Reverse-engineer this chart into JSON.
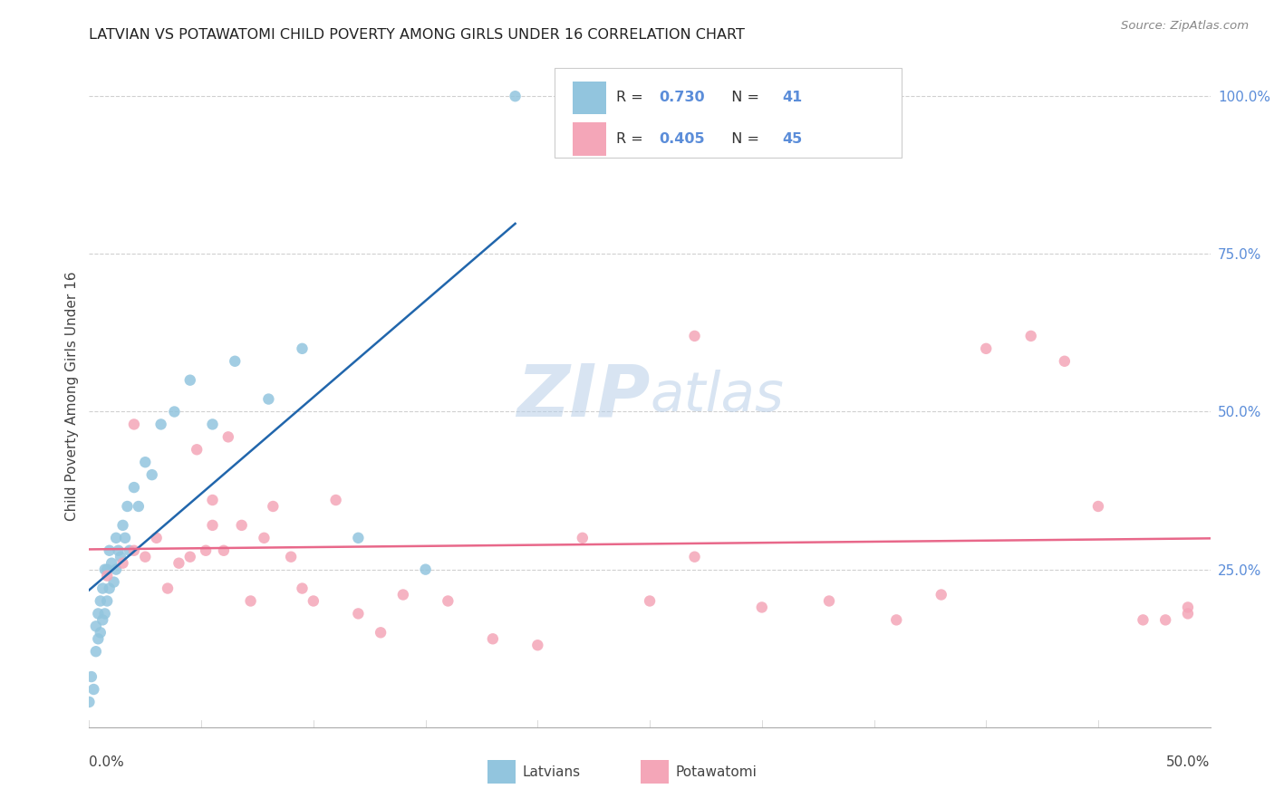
{
  "title": "LATVIAN VS POTAWATOMI CHILD POVERTY AMONG GIRLS UNDER 16 CORRELATION CHART",
  "source": "Source: ZipAtlas.com",
  "ylabel": "Child Poverty Among Girls Under 16",
  "ytick_labels": [
    "100.0%",
    "75.0%",
    "50.0%",
    "25.0%"
  ],
  "ytick_positions": [
    1.0,
    0.75,
    0.5,
    0.25
  ],
  "xlim": [
    0.0,
    0.5
  ],
  "ylim": [
    0.0,
    1.05
  ],
  "latvian_color": "#92c5de",
  "potawatomi_color": "#f4a6b8",
  "latvian_line_color": "#2166ac",
  "potawatomi_line_color": "#e8688a",
  "legend_R_latvian": "0.730",
  "legend_N_latvian": "41",
  "legend_R_potawatomi": "0.405",
  "legend_N_potawatomi": "45",
  "watermark_zip": "ZIP",
  "watermark_atlas": "atlas",
  "lat_x": [
    0.0,
    0.001,
    0.002,
    0.003,
    0.003,
    0.004,
    0.004,
    0.005,
    0.005,
    0.006,
    0.006,
    0.007,
    0.007,
    0.008,
    0.008,
    0.009,
    0.009,
    0.01,
    0.011,
    0.012,
    0.012,
    0.013,
    0.014,
    0.015,
    0.016,
    0.017,
    0.018,
    0.02,
    0.022,
    0.025,
    0.028,
    0.032,
    0.038,
    0.045,
    0.055,
    0.065,
    0.08,
    0.095,
    0.12,
    0.15,
    0.19
  ],
  "lat_y": [
    0.04,
    0.08,
    0.06,
    0.12,
    0.16,
    0.14,
    0.18,
    0.15,
    0.2,
    0.17,
    0.22,
    0.18,
    0.25,
    0.2,
    0.25,
    0.22,
    0.28,
    0.26,
    0.23,
    0.3,
    0.25,
    0.28,
    0.27,
    0.32,
    0.3,
    0.35,
    0.28,
    0.38,
    0.35,
    0.42,
    0.4,
    0.48,
    0.5,
    0.55,
    0.48,
    0.58,
    0.52,
    0.6,
    0.3,
    0.25,
    1.0
  ],
  "pot_x": [
    0.008,
    0.015,
    0.02,
    0.025,
    0.03,
    0.035,
    0.04,
    0.045,
    0.048,
    0.052,
    0.055,
    0.06,
    0.062,
    0.068,
    0.072,
    0.078,
    0.082,
    0.09,
    0.095,
    0.1,
    0.11,
    0.12,
    0.13,
    0.14,
    0.16,
    0.18,
    0.2,
    0.22,
    0.25,
    0.27,
    0.3,
    0.33,
    0.36,
    0.38,
    0.4,
    0.42,
    0.435,
    0.45,
    0.47,
    0.48,
    0.49,
    0.02,
    0.055,
    0.27,
    0.49
  ],
  "pot_y": [
    0.24,
    0.26,
    0.28,
    0.27,
    0.3,
    0.22,
    0.26,
    0.27,
    0.44,
    0.28,
    0.32,
    0.28,
    0.46,
    0.32,
    0.2,
    0.3,
    0.35,
    0.27,
    0.22,
    0.2,
    0.36,
    0.18,
    0.15,
    0.21,
    0.2,
    0.14,
    0.13,
    0.3,
    0.2,
    0.62,
    0.19,
    0.2,
    0.17,
    0.21,
    0.6,
    0.62,
    0.58,
    0.35,
    0.17,
    0.17,
    0.18,
    0.48,
    0.36,
    0.27,
    0.19
  ]
}
